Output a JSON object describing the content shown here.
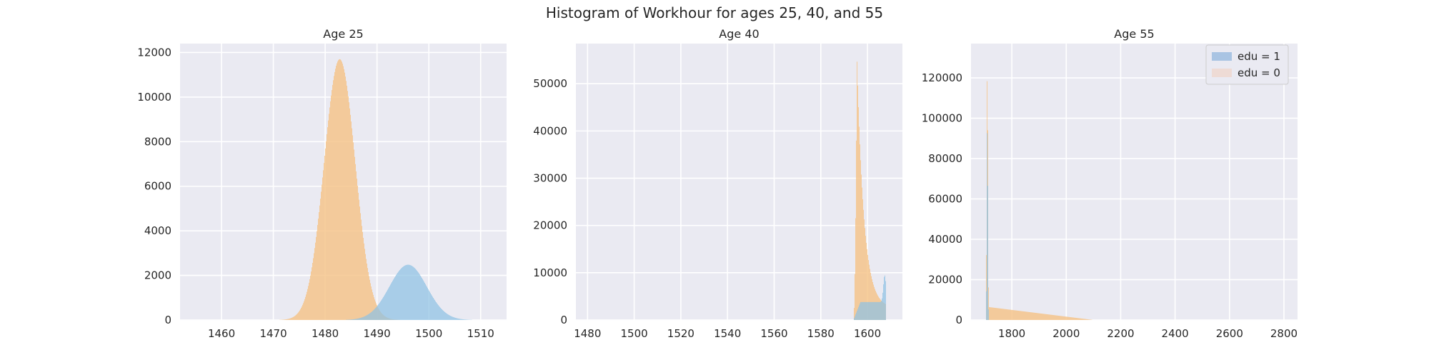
{
  "figure": {
    "suptitle": "Histogram of Workhour for ages 25, 40, and 55"
  },
  "colors": {
    "edu1": "#8fc2e3",
    "edu0": "#f5c285",
    "overlap": "#a8ad7a",
    "panel_bg": "#eaeaf2",
    "grid": "#ffffff",
    "legend_edu1": "#a9c4e3",
    "legend_edu0": "#eedbd5"
  },
  "legend": {
    "position": "upper right",
    "items": [
      "edu = 1",
      "edu = 0"
    ]
  },
  "chart_data": [
    {
      "type": "histogram",
      "title": "Age 25",
      "xlabel": "",
      "ylabel": "",
      "xlim": [
        1452,
        1515
      ],
      "ylim": [
        0,
        12400
      ],
      "xticks": [
        1460,
        1470,
        1480,
        1490,
        1500,
        1510
      ],
      "yticks": [
        0,
        2000,
        4000,
        6000,
        8000,
        10000,
        12000
      ],
      "grid": true,
      "series": [
        {
          "name": "edu = 0",
          "shape": "gaussian",
          "peak_x": 1482.8,
          "peak_count": 11700,
          "std": 3.0,
          "range": [
            1471,
            1495
          ]
        },
        {
          "name": "edu = 1",
          "shape": "gaussian",
          "peak_x": 1496.0,
          "peak_count": 2480,
          "std": 3.6,
          "range": [
            1484,
            1510
          ]
        }
      ]
    },
    {
      "type": "histogram",
      "title": "Age 40",
      "xlabel": "",
      "ylabel": "",
      "xlim": [
        1475,
        1615
      ],
      "ylim": [
        0,
        58500
      ],
      "xticks": [
        1480,
        1500,
        1520,
        1540,
        1560,
        1580,
        1600
      ],
      "yticks": [
        0,
        10000,
        20000,
        30000,
        40000,
        50000
      ],
      "grid": true,
      "series": [
        {
          "name": "edu = 0",
          "shape": "spike-decay",
          "start_x": 1594,
          "peak_x": 1595.5,
          "peak_count": 55500,
          "decay": 3.0,
          "plateau": 2500,
          "end_x": 1608
        },
        {
          "name": "edu = 1",
          "shape": "plateau",
          "start_x": 1594,
          "rise_to": 3800,
          "end_x": 1608,
          "end_spike": 9500
        }
      ]
    },
    {
      "type": "histogram",
      "title": "Age 55",
      "xlabel": "",
      "ylabel": "",
      "xlim": [
        1650,
        2850
      ],
      "ylim": [
        0,
        137000
      ],
      "xticks": [
        1800,
        2000,
        2200,
        2400,
        2600,
        2800
      ],
      "yticks": [
        0,
        20000,
        40000,
        60000,
        80000,
        100000,
        120000
      ],
      "grid": true,
      "series": [
        {
          "name": "edu = 0",
          "shape": "spike-tail",
          "start_x": 1705,
          "peak_x": 1710,
          "peak_count": 130000,
          "tail_level": 6500,
          "tail_end": 2100
        },
        {
          "name": "edu = 1",
          "shape": "spike",
          "start_x": 1705,
          "peak_x": 1710,
          "peak_count": 106000,
          "tail_end": 1725
        }
      ]
    }
  ]
}
